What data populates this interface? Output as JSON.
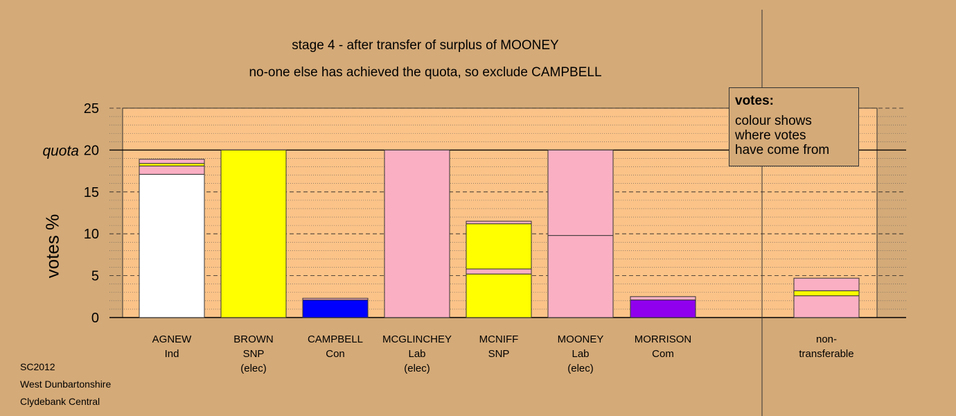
{
  "title": "stage 4 - after transfer of surplus of MOONEY",
  "subtitle": "no-one else has achieved the quota, so exclude CAMPBELL",
  "legend": {
    "title": "votes:",
    "lines": [
      "colour shows",
      "where votes",
      "have come from"
    ]
  },
  "footer": [
    "SC2012",
    "West Dunbartonshire",
    "Clydebank Central"
  ],
  "colors": {
    "background": "#d4aa78",
    "plot_area": "#fbc388",
    "Ind": "#ffffff",
    "SNP": "#ffff00",
    "Con": "#0000ff",
    "Lab": "#fbafc3",
    "Com": "#9000ee"
  },
  "chart_data": {
    "type": "bar",
    "stacked": true,
    "ylabel": "votes %",
    "ylim": [
      0,
      25
    ],
    "yticks": [
      "0",
      "5",
      "10",
      "15",
      "20",
      "25"
    ],
    "quota": {
      "label": "quota",
      "value": 20
    },
    "grid": "dashed",
    "legend_position": "top-right",
    "bars": [
      {
        "label": [
          "AGNEW",
          "Ind"
        ],
        "segments": [
          {
            "value": 17.1,
            "color": "Ind"
          },
          {
            "value": 1.0,
            "color": "Lab"
          },
          {
            "value": 0.3,
            "color": "SNP"
          },
          {
            "value": 0.5,
            "color": "Lab"
          }
        ]
      },
      {
        "label": [
          "BROWN",
          "SNP",
          "(elec)"
        ],
        "segments": [
          {
            "value": 20.0,
            "color": "SNP"
          }
        ]
      },
      {
        "label": [
          "CAMPBELL",
          "Con"
        ],
        "segments": [
          {
            "value": 2.1,
            "color": "Con"
          },
          {
            "value": 0.2,
            "color": "Lab"
          }
        ]
      },
      {
        "label": [
          "MCGLINCHEY",
          "Lab",
          "(elec)"
        ],
        "segments": [
          {
            "value": 20.0,
            "color": "Lab"
          }
        ]
      },
      {
        "label": [
          "MCNIFF",
          "SNP"
        ],
        "segments": [
          {
            "value": 5.2,
            "color": "SNP"
          },
          {
            "value": 0.6,
            "color": "Lab"
          },
          {
            "value": 5.4,
            "color": "SNP"
          },
          {
            "value": 0.3,
            "color": "Lab"
          }
        ]
      },
      {
        "label": [
          "MOONEY",
          "Lab",
          "(elec)"
        ],
        "segments": [
          {
            "value": 9.8,
            "color": "Lab"
          },
          {
            "value": 10.2,
            "color": "Lab"
          }
        ]
      },
      {
        "label": [
          "MORRISON",
          "Com"
        ],
        "segments": [
          {
            "value": 2.1,
            "color": "Com"
          },
          {
            "value": 0.4,
            "color": "Lab"
          }
        ]
      },
      {
        "label": [
          "non-",
          "transferable"
        ],
        "segments": [
          {
            "value": 2.6,
            "color": "Lab"
          },
          {
            "value": 0.6,
            "color": "SNP"
          },
          {
            "value": 1.5,
            "color": "Lab"
          }
        ]
      }
    ]
  }
}
